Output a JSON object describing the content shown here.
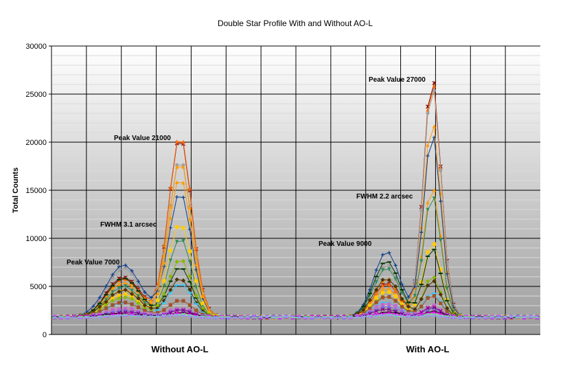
{
  "chart_data": {
    "type": "line",
    "title": "Double Star Profile With and Without AO-L",
    "ylabel": "Total Counts",
    "xlabel": "",
    "ylim": [
      0,
      30000
    ],
    "yticks": [
      0,
      5000,
      10000,
      15000,
      20000,
      25000,
      30000
    ],
    "group_labels": [
      "Without AO-L",
      "With AO-L"
    ],
    "points_per_group": 38,
    "baseline": 1800,
    "grid": true,
    "legend": "none",
    "annotations": [
      {
        "text": "Peak Value 21000",
        "group": 0
      },
      {
        "text": "FWHM 3.1  arcsec",
        "group": 0
      },
      {
        "text": "Peak Value 7000",
        "group": 0
      },
      {
        "text": "Peak Value 27000",
        "group": 1
      },
      {
        "text": "FWHM 2.2  arcsec",
        "group": 1
      },
      {
        "text": "Peak Value 9000",
        "group": 1
      }
    ],
    "series": [
      {
        "color": "#800000",
        "marker": "star",
        "without": {
          "peak1": 6000,
          "peak2": 20500
        },
        "with": {
          "peak1": 5300,
          "peak2": 26800
        }
      },
      {
        "color": "#FF6600",
        "marker": "triangle",
        "without": {
          "peak1": 5800,
          "peak2": 20800
        },
        "with": {
          "peak1": 5200,
          "peak2": 26500
        }
      },
      {
        "color": "#A0A0A0",
        "marker": "circle",
        "without": {
          "peak1": 6900,
          "peak2": 18200
        },
        "with": {
          "peak1": 7200,
          "peak2": 26000
        }
      },
      {
        "color": "#FF9900",
        "marker": "triangle",
        "without": {
          "peak1": 5400,
          "peak2": 18000
        },
        "with": {
          "peak1": 5800,
          "peak2": 22200
        }
      },
      {
        "color": "#0B3C8C",
        "marker": "plus",
        "without": {
          "peak1": 7300,
          "peak2": 14800
        },
        "with": {
          "peak1": 8600,
          "peak2": 21000
        }
      },
      {
        "color": "#FF9900",
        "marker": "triangle",
        "without": {
          "peak1": 4700,
          "peak2": 16300
        },
        "with": {
          "peak1": 4800,
          "peak2": 15400
        }
      },
      {
        "color": "#2E8B57",
        "marker": "triangle-down",
        "without": {
          "peak1": 5000,
          "peak2": 10000
        },
        "with": {
          "peak1": 6900,
          "peak2": 14500
        }
      },
      {
        "color": "#FFCC00",
        "marker": "square",
        "without": {
          "peak1": 4200,
          "peak2": 11500
        },
        "with": {
          "peak1": 4500,
          "peak2": 9600
        }
      },
      {
        "color": "#003300",
        "marker": "dash",
        "without": {
          "peak1": 5900,
          "peak2": 7000
        },
        "with": {
          "peak1": 7700,
          "peak2": 9000
        }
      },
      {
        "color": "#8DB600",
        "marker": "diamond",
        "without": {
          "peak1": 3900,
          "peak2": 7800
        },
        "with": {
          "peak1": 4000,
          "peak2": 6000
        }
      },
      {
        "color": "#4D3300",
        "marker": "diamond",
        "without": {
          "peak1": 4600,
          "peak2": 5800
        },
        "with": {
          "peak1": 5800,
          "peak2": 5600
        }
      },
      {
        "color": "#33CCFF",
        "marker": "dash",
        "without": {
          "peak1": 3300,
          "peak2": 5300
        },
        "with": {
          "peak1": 3400,
          "peak2": 4300
        }
      },
      {
        "color": "#A0522D",
        "marker": "square",
        "without": {
          "peak1": 3400,
          "peak2": 3500
        },
        "with": {
          "peak1": 4000,
          "peak2": 4000
        }
      },
      {
        "color": "#CC66CC",
        "marker": "square",
        "without": {
          "peak1": 2700,
          "peak2": 2700
        },
        "with": {
          "peak1": 3200,
          "peak2": 3000
        }
      },
      {
        "color": "#7B68EE",
        "marker": "triangle",
        "without": {
          "peak1": 2500,
          "peak2": 2600
        },
        "with": {
          "peak1": 2900,
          "peak2": 2700
        }
      },
      {
        "color": "#800080",
        "marker": "x",
        "without": {
          "peak1": 2300,
          "peak2": 2500
        },
        "with": {
          "peak1": 2600,
          "peak2": 2800
        }
      },
      {
        "color": "#000000",
        "marker": "dash",
        "without": {
          "peak1": 2200,
          "peak2": 2300
        },
        "with": {
          "peak1": 2300,
          "peak2": 2400
        }
      },
      {
        "color": "#FF00FF",
        "marker": "x",
        "without": {
          "peak1": 2100,
          "peak2": 2200
        },
        "with": {
          "peak1": 2200,
          "peak2": 2300
        }
      },
      {
        "color": "#66FF66",
        "marker": "dash",
        "without": {
          "peak1": 2000,
          "peak2": 2100
        },
        "with": {
          "peak1": 2000,
          "peak2": 2100
        }
      },
      {
        "color": "#9999FF",
        "marker": "x",
        "without": {
          "peak1": 1950,
          "peak2": 2000
        },
        "with": {
          "peak1": 1950,
          "peak2": 2000
        }
      }
    ]
  }
}
